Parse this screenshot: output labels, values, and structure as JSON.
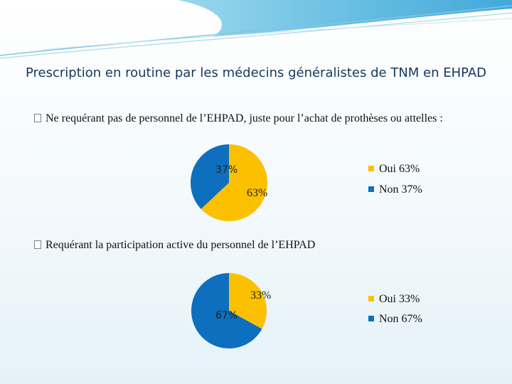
{
  "title": "Prescription en routine par les médecins généralistes de TNM en EHPAD",
  "bullets": [
    "Ne requérant pas de personnel de l’EHPAD, juste pour l’achat de prothèses ou attelles :",
    "Requérant la participation active du personnel de l’EHPAD"
  ],
  "colors": {
    "oui": "#fbc100",
    "non": "#0d6fbd",
    "title": "#17375e"
  },
  "chart_data": [
    {
      "type": "pie",
      "title": "",
      "slices": [
        {
          "label": "Oui",
          "value": 63,
          "display": "63%",
          "legend": "Oui 63%"
        },
        {
          "label": "Non",
          "value": 37,
          "display": "37%",
          "legend": "Non 37%"
        }
      ]
    },
    {
      "type": "pie",
      "title": "",
      "slices": [
        {
          "label": "Oui",
          "value": 33,
          "display": "33%",
          "legend": "Oui 33%"
        },
        {
          "label": "Non",
          "value": 67,
          "display": "67%",
          "legend": "Non 67%"
        }
      ]
    }
  ]
}
